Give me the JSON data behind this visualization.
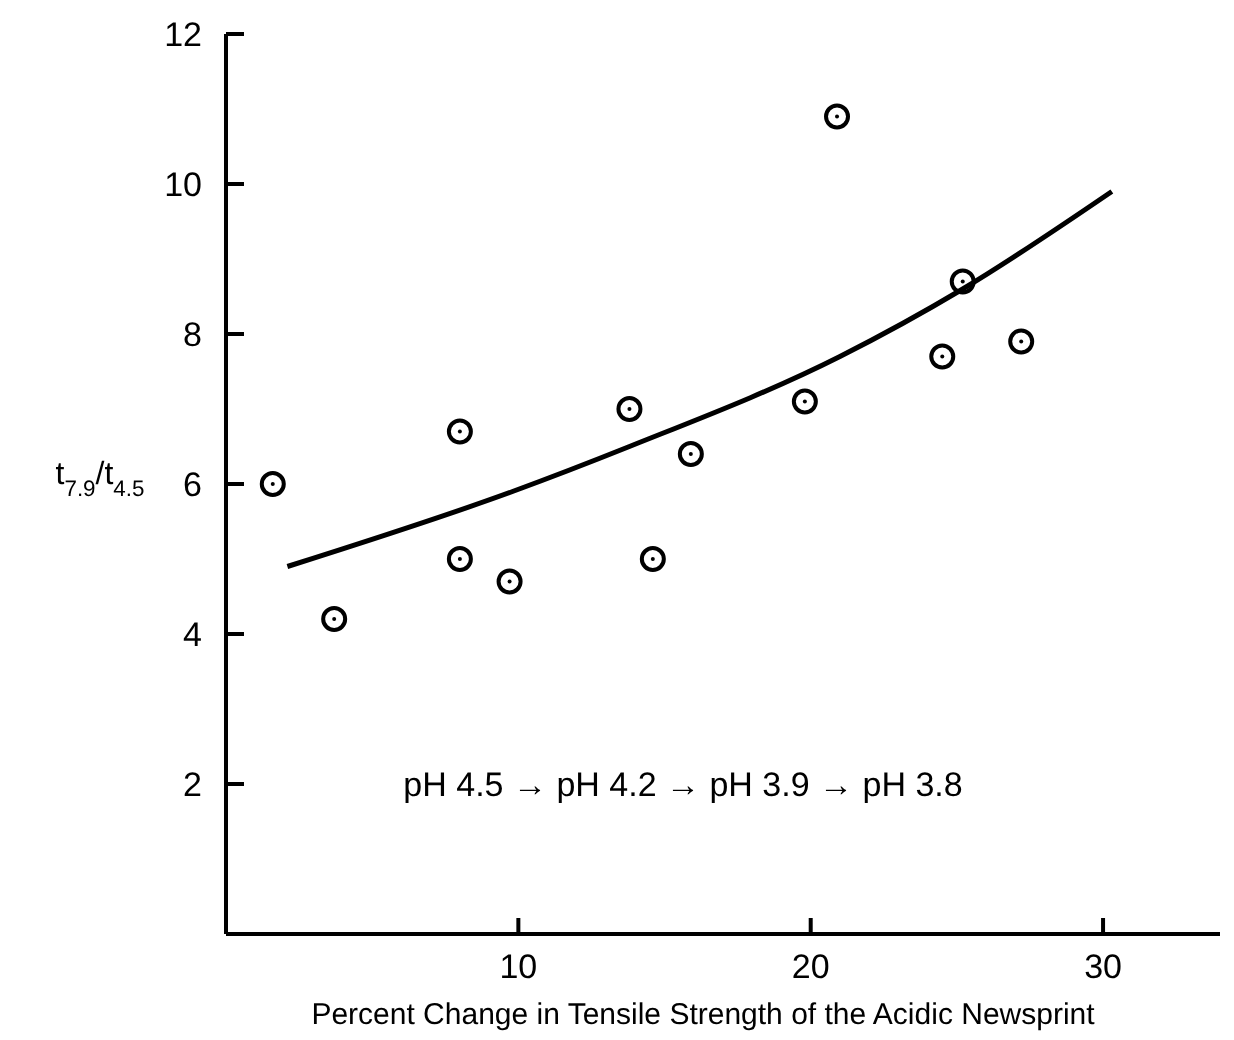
{
  "chart_data": {
    "type": "scatter",
    "xlabel": "Percent Change in Tensile  Strength of the Acidic Newsprint",
    "ylabel": "t$_{7.9}$/t$_{4.5}$",
    "xlim": [
      0,
      34
    ],
    "ylim": [
      0,
      12
    ],
    "xticks": [
      10,
      20,
      30
    ],
    "yticks": [
      2,
      4,
      6,
      8,
      10,
      12
    ],
    "grid": false,
    "annotations": [
      "pH 4.5 → pH 4.2 → pH 3.9 → pH 3.8"
    ],
    "series": [
      {
        "marker": "circle",
        "color": "#000000",
        "x": [
          1.6,
          3.7,
          8.0,
          8.0,
          9.7,
          13.8,
          14.6,
          15.9,
          19.8,
          20.9,
          24.5,
          25.2,
          27.2
        ],
        "values": [
          6.0,
          4.2,
          6.7,
          5.0,
          4.7,
          7.0,
          5.0,
          6.4,
          7.1,
          10.9,
          7.7,
          8.7,
          7.9
        ]
      },
      {
        "type": "line",
        "marker": "none",
        "line_style": "solid",
        "color": "#000000",
        "x": [
          2.1,
          9.8,
          13.8,
          21.0,
          25.2,
          30.3
        ],
        "values": [
          4.9,
          5.9,
          6.5,
          7.7,
          8.6,
          9.9
        ]
      }
    ]
  }
}
